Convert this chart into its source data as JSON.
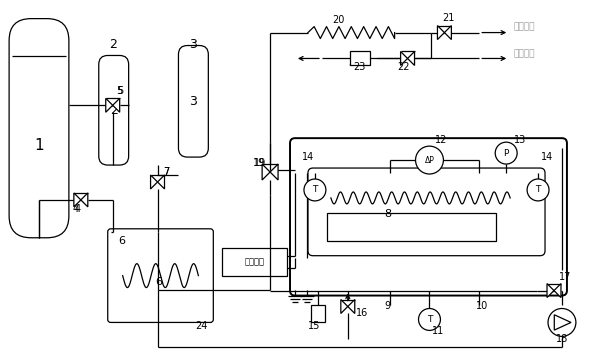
{
  "bg_color": "#ffffff",
  "line_color": "#000000",
  "gray_text_color": "#999999",
  "dc_power_label": "直流电源",
  "chinese_text1": "大气或后",
  "chinese_text2": "处理设备"
}
